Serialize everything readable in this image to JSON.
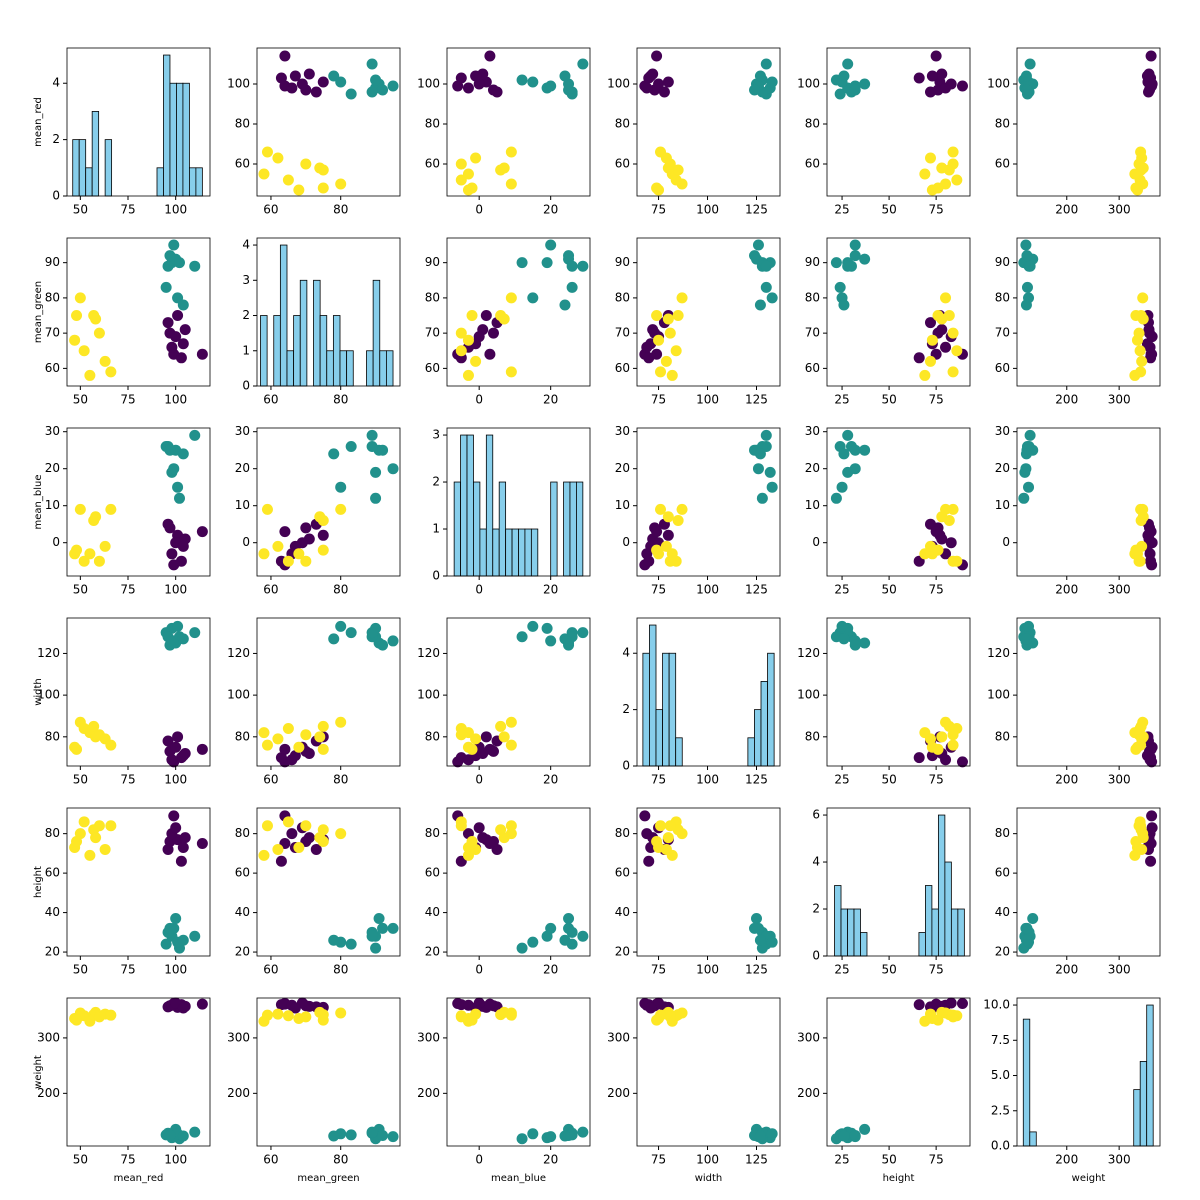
{
  "chart_data": {
    "type": "scatter_matrix",
    "class_colors": [
      "#440154",
      "#21918c",
      "#fde725"
    ],
    "classes": [
      0,
      0,
      0,
      0,
      0,
      0,
      0,
      0,
      0,
      0,
      2,
      2,
      2,
      2,
      2,
      2,
      2,
      2,
      2,
      2,
      1,
      1,
      1,
      1,
      1,
      1,
      1,
      1,
      1,
      1
    ],
    "hist_color": "#87ceeb",
    "variables": [
      {
        "name": "mean_red",
        "values": [
          97,
          99,
          101,
          103,
          105,
          96,
          114,
          98,
          100,
          104,
          47,
          50,
          52,
          55,
          57,
          58,
          60,
          63,
          66,
          48,
          95,
          98,
          100,
          102,
          96,
          99,
          110,
          101,
          97,
          104
        ],
        "lim": [
          43,
          118
        ],
        "ticks": [
          50,
          75,
          100
        ],
        "ylim": [
          44,
          118
        ],
        "yticks": [
          60,
          80,
          100
        ],
        "hist": {
          "bins": [
            46,
            49.4,
            52.8,
            56.2,
            59.6,
            63,
            66.4,
            69.8,
            73.2,
            76.6,
            80,
            83.4,
            86.8,
            90.2,
            93.6,
            97,
            100.4,
            103.8,
            107.2,
            110.6,
            114
          ],
          "counts": [
            2,
            2,
            1,
            3,
            0,
            2,
            0,
            0,
            0,
            0,
            0,
            0,
            0,
            1,
            5,
            4,
            4,
            4,
            1,
            1
          ],
          "ylim": [
            0,
            5.25
          ],
          "yticks": [
            0,
            2,
            4
          ]
        }
      },
      {
        "name": "mean_green",
        "values": [
          70,
          64,
          75,
          63,
          71,
          73,
          64,
          66,
          69,
          67,
          68,
          80,
          65,
          58,
          75,
          74,
          70,
          62,
          59,
          75,
          83,
          90,
          91,
          90,
          89,
          95,
          89,
          80,
          92,
          78
        ],
        "lim": [
          56,
          97
        ],
        "ticks": [
          60,
          80
        ],
        "ylim": [
          55,
          97
        ],
        "yticks": [
          60,
          70,
          80,
          90
        ],
        "hist": {
          "bins": [
            57,
            58.9,
            60.8,
            62.7,
            64.6,
            66.5,
            68.4,
            70.3,
            72.2,
            74.1,
            76,
            77.9,
            79.8,
            81.7,
            83.6,
            85.5,
            87.4,
            89.3,
            91.2,
            93.1,
            95
          ],
          "counts": [
            2,
            0,
            2,
            4,
            1,
            2,
            3,
            0,
            3,
            2,
            1,
            2,
            1,
            1,
            0,
            0,
            1,
            3,
            1,
            1
          ],
          "ylim": [
            0,
            4.2
          ],
          "yticks": [
            0,
            1,
            2,
            3,
            4
          ]
        }
      },
      {
        "name": "mean_blue",
        "values": [
          4,
          -6,
          2,
          -5,
          1,
          5,
          3,
          -3,
          0,
          -1,
          -3,
          9,
          -5,
          -3,
          6,
          7,
          -5,
          -1,
          9,
          -2,
          26,
          19,
          25,
          12,
          26,
          20,
          29,
          15,
          25,
          24
        ],
        "lim": [
          -9,
          31
        ],
        "ticks": [
          0,
          20
        ],
        "ylim": [
          -9,
          31
        ],
        "yticks": [
          0,
          10,
          20,
          30
        ],
        "hist": {
          "bins": [
            -7,
            -5.2,
            -3.4,
            -1.6,
            0.2,
            2,
            3.8,
            5.6,
            7.4,
            9.2,
            11,
            12.8,
            14.6,
            16.4,
            18.2,
            20,
            21.8,
            23.6,
            25.4,
            27.2,
            29
          ],
          "counts": [
            2,
            3,
            3,
            2,
            1,
            3,
            1,
            2,
            1,
            1,
            1,
            1,
            1,
            0,
            0,
            2,
            0,
            2,
            2,
            2
          ],
          "ylim": [
            0,
            3.15
          ],
          "yticks": [
            0,
            1,
            2,
            3
          ]
        }
      },
      {
        "name": "width",
        "values": [
          73,
          68,
          80,
          70,
          72,
          78,
          74,
          69,
          75,
          71,
          75,
          87,
          84,
          82,
          85,
          80,
          81,
          79,
          76,
          74,
          130,
          132,
          125,
          128,
          128,
          126,
          130,
          133,
          124,
          127
        ],
        "lim": [
          64,
          137
        ],
        "ticks": [
          75,
          100,
          125
        ],
        "ylim": [
          66,
          137
        ],
        "yticks": [
          80,
          100,
          120
        ],
        "hist": {
          "bins": [
            67,
            70.35,
            73.7,
            77.05,
            80.4,
            83.75,
            87.1,
            90.45,
            93.8,
            97.15,
            100.5,
            103.85,
            107.2,
            110.55,
            113.9,
            117.25,
            120.6,
            123.95,
            127.3,
            130.65,
            134
          ],
          "counts": [
            4,
            5,
            2,
            4,
            4,
            1,
            0,
            0,
            0,
            0,
            0,
            0,
            0,
            0,
            0,
            0,
            1,
            2,
            3,
            4
          ],
          "ylim": [
            0,
            5.25
          ],
          "yticks": [
            0,
            2,
            4
          ]
        }
      },
      {
        "name": "height",
        "values": [
          76,
          89,
          77,
          66,
          78,
          72,
          75,
          80,
          83,
          73,
          73,
          80,
          86,
          69,
          82,
          78,
          84,
          72,
          84,
          76,
          24,
          28,
          37,
          22,
          30,
          32,
          28,
          25,
          32,
          26
        ],
        "lim": [
          17,
          93
        ],
        "ticks": [
          25,
          50,
          75
        ],
        "ylim": [
          18,
          93
        ],
        "yticks": [
          20,
          40,
          60,
          80
        ],
        "hist": {
          "bins": [
            21,
            24.45,
            27.9,
            31.35,
            34.8,
            38.25,
            41.7,
            45.15,
            48.6,
            52.05,
            55.5,
            58.95,
            62.4,
            65.85,
            69.3,
            72.75,
            76.2,
            79.65,
            83.1,
            86.55,
            90
          ],
          "counts": [
            3,
            2,
            2,
            2,
            1,
            0,
            0,
            0,
            0,
            0,
            0,
            0,
            0,
            1,
            3,
            2,
            6,
            4,
            2,
            2
          ],
          "ylim": [
            0,
            6.3
          ],
          "yticks": [
            0,
            2,
            4,
            6
          ]
        }
      },
      {
        "name": "weight",
        "values": [
          358,
          362,
          355,
          360,
          357,
          356,
          361,
          359,
          363,
          354,
          335,
          345,
          340,
          330,
          342,
          346,
          338,
          343,
          341,
          332,
          125,
          120,
          135,
          118,
          128,
          122,
          130,
          127,
          124,
          123
        ],
        "lim": [
          105,
          378
        ],
        "ticks": [
          200,
          300
        ],
        "ylim": [
          105,
          372
        ],
        "yticks": [
          200,
          300
        ],
        "hist": {
          "bins": [
            117,
            129.4,
            141.8,
            154.2,
            166.6,
            179,
            191.4,
            203.8,
            216.2,
            228.6,
            241,
            253.4,
            265.8,
            278.2,
            290.6,
            303,
            315.4,
            327.8,
            340.2,
            352.6,
            365
          ],
          "counts": [
            9,
            1,
            0,
            0,
            0,
            0,
            0,
            0,
            0,
            0,
            0,
            0,
            0,
            0,
            0,
            0,
            0,
            4,
            6,
            10
          ],
          "ylim": [
            0,
            10.5
          ],
          "yticks": [
            {
              "value": 0,
              "label": "0.0"
            },
            {
              "value": 2.5,
              "label": "2.5"
            },
            {
              "value": 5,
              "label": "5.0"
            },
            {
              "value": 7.5,
              "label": "7.5"
            },
            {
              "value": 10,
              "label": "10.0"
            }
          ]
        }
      }
    ]
  }
}
